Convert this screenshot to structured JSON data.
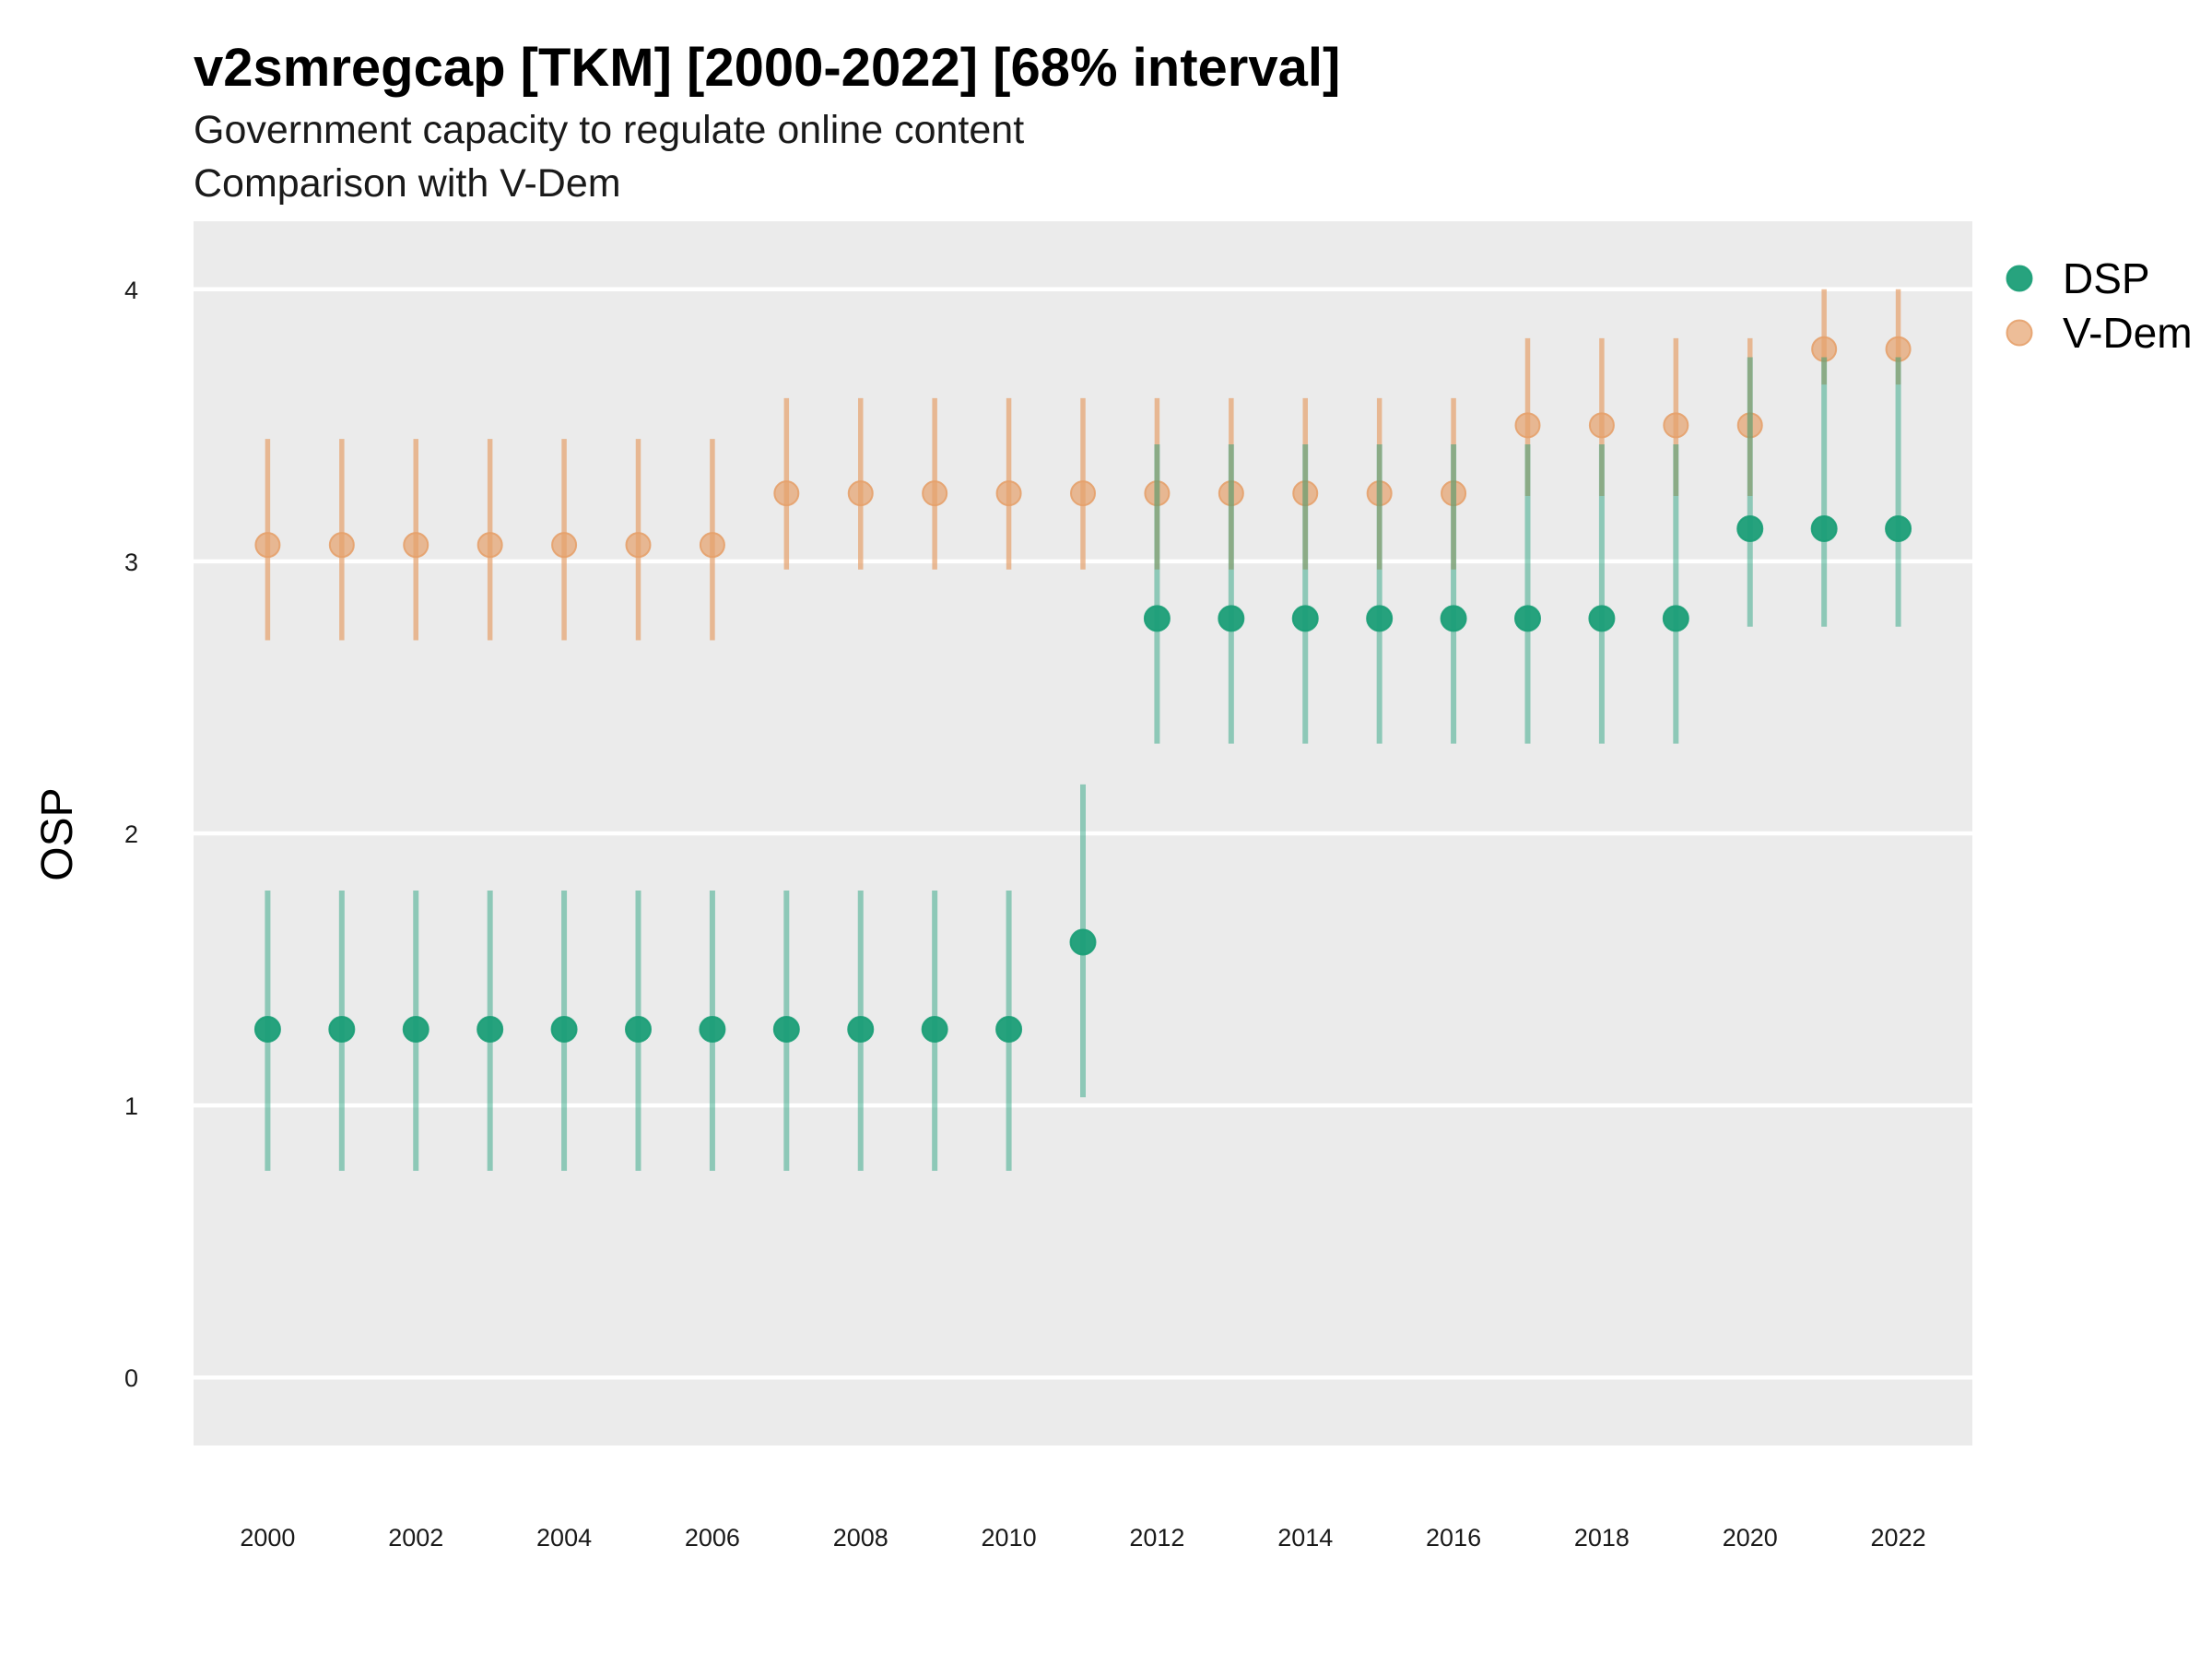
{
  "chart_data": {
    "type": "scatter",
    "title": "v2smregcap [TKM] [2000-2022] [68% interval]",
    "subtitle": "Government capacity to regulate online content",
    "subtitle2": "Comparison with V-Dem",
    "xlabel": "",
    "ylabel": "OSP",
    "xlim": [
      1999,
      2023
    ],
    "ylim": [
      -0.25,
      4.25
    ],
    "yticks": [
      0,
      1,
      2,
      3,
      4
    ],
    "xticks": [
      2000,
      2002,
      2004,
      2006,
      2008,
      2010,
      2012,
      2014,
      2016,
      2018,
      2020,
      2022
    ],
    "grid": true,
    "legend_position": "right",
    "x": [
      2000,
      2001,
      2002,
      2003,
      2004,
      2005,
      2006,
      2007,
      2008,
      2009,
      2010,
      2011,
      2012,
      2013,
      2014,
      2015,
      2016,
      2017,
      2018,
      2019,
      2020,
      2021,
      2022
    ],
    "series": [
      {
        "name": "V-Dem",
        "color": "#E6A16C",
        "values": [
          3.06,
          3.06,
          3.06,
          3.06,
          3.06,
          3.06,
          3.06,
          3.25,
          3.25,
          3.25,
          3.25,
          3.25,
          3.25,
          3.25,
          3.25,
          3.25,
          3.25,
          3.5,
          3.5,
          3.5,
          3.5,
          3.78,
          3.78
        ],
        "lower": [
          2.71,
          2.71,
          2.71,
          2.71,
          2.71,
          2.71,
          2.71,
          2.97,
          2.97,
          2.97,
          2.97,
          2.97,
          2.97,
          2.97,
          2.97,
          2.97,
          2.97,
          3.24,
          3.24,
          3.24,
          3.24,
          3.65,
          3.65
        ],
        "upper": [
          3.45,
          3.45,
          3.45,
          3.45,
          3.45,
          3.45,
          3.45,
          3.6,
          3.6,
          3.6,
          3.6,
          3.6,
          3.6,
          3.6,
          3.6,
          3.6,
          3.6,
          3.82,
          3.82,
          3.82,
          3.82,
          4.0,
          4.0
        ]
      },
      {
        "name": "DSP",
        "color": "#1B9E77",
        "values": [
          1.28,
          1.28,
          1.28,
          1.28,
          1.28,
          1.28,
          1.28,
          1.28,
          1.28,
          1.28,
          1.28,
          1.6,
          2.79,
          2.79,
          2.79,
          2.79,
          2.79,
          2.79,
          2.79,
          2.79,
          3.12,
          3.12,
          3.12
        ],
        "lower": [
          0.76,
          0.76,
          0.76,
          0.76,
          0.76,
          0.76,
          0.76,
          0.76,
          0.76,
          0.76,
          0.76,
          1.03,
          2.33,
          2.33,
          2.33,
          2.33,
          2.33,
          2.33,
          2.33,
          2.33,
          2.76,
          2.76,
          2.76
        ],
        "upper": [
          1.79,
          1.79,
          1.79,
          1.79,
          1.79,
          1.79,
          1.79,
          1.79,
          1.79,
          1.79,
          1.79,
          2.18,
          3.43,
          3.43,
          3.43,
          3.43,
          3.43,
          3.43,
          3.43,
          3.43,
          3.75,
          3.75,
          3.75
        ]
      }
    ],
    "colors": {
      "panel_background": "#EBEBEB",
      "gridline": "#FFFFFF"
    }
  }
}
